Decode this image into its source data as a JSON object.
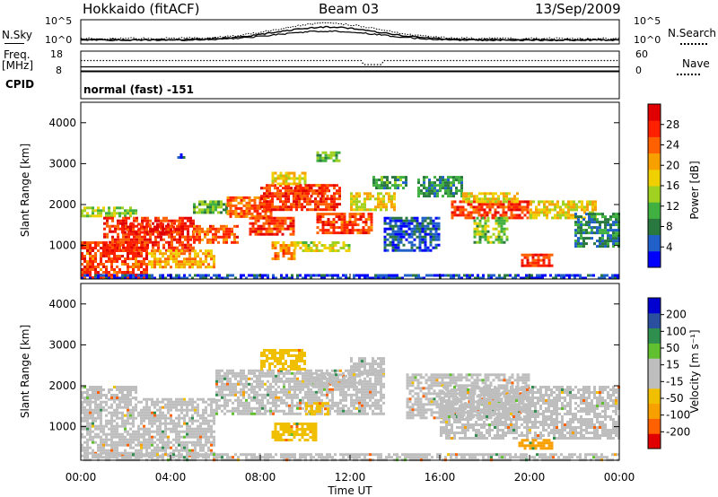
{
  "header": {
    "station": "Hokkaido (fitACF)",
    "beam": "Beam 03",
    "date": "13/Sep/2009"
  },
  "top_panels": {
    "nsky_label": "N.Sky",
    "nsky_ticks": [
      "10^5",
      "10^0"
    ],
    "nsearch_label": "N.Search",
    "nsearch_ticks": [
      "10^5",
      "10^0"
    ],
    "freq_label_1": "Freq.",
    "freq_label_2": "[MHz]",
    "freq_ticks": [
      "18",
      "8"
    ],
    "nave_label": "Nave",
    "nave_ticks": [
      "60",
      "0"
    ],
    "cpid_label": "CPID",
    "cpid_text": "normal (fast) -151"
  },
  "axes": {
    "ylabel": "Slant Range [km]",
    "xlabel": "Time UT",
    "yticks": [
      "1000",
      "2000",
      "3000",
      "4000"
    ],
    "xticks": [
      "00:00",
      "04:00",
      "08:00",
      "12:00",
      "16:00",
      "20:00",
      "00:00"
    ]
  },
  "colors": {
    "power": [
      "#0000ff",
      "#2060c8",
      "#287840",
      "#40b040",
      "#a0d020",
      "#f0d000",
      "#f8a000",
      "#ff6000",
      "#ff2000",
      "#e00000"
    ],
    "velocity": [
      "#e00000",
      "#ff6000",
      "#f8a000",
      "#f0c000",
      "#bebebe",
      "#bebebe",
      "#60c030",
      "#2f8f4f",
      "#2a4f9f",
      "#0000d0"
    ],
    "gray": "#bebebe"
  },
  "chart_data": [
    {
      "type": "heatmap",
      "panel": "power",
      "colorbar_label": "Power [dB]",
      "colorbar_ticks": [
        "4",
        "8",
        "12",
        "16",
        "20",
        "24",
        "28"
      ],
      "x_range_hours": [
        0,
        24
      ],
      "y_range_km": [
        180,
        4500
      ],
      "bands": [
        {
          "t": [
            0.0,
            3.0
          ],
          "r": [
            180,
            1100
          ],
          "v": 26
        },
        {
          "t": [
            0.0,
            2.5
          ],
          "r": [
            1700,
            1950
          ],
          "v": 14
        },
        {
          "t": [
            1.0,
            5.0
          ],
          "r": [
            900,
            1700
          ],
          "v": 27
        },
        {
          "t": [
            1.8,
            4.5
          ],
          "r": [
            1300,
            1550
          ],
          "v": 28
        },
        {
          "t": [
            3.0,
            6.0
          ],
          "r": [
            500,
            900
          ],
          "v": 20
        },
        {
          "t": [
            5.0,
            7.0
          ],
          "r": [
            1100,
            1500
          ],
          "v": 25
        },
        {
          "t": [
            5.0,
            6.5
          ],
          "r": [
            1800,
            2100
          ],
          "v": 12
        },
        {
          "t": [
            6.5,
            8.5
          ],
          "r": [
            1700,
            2200
          ],
          "v": 24
        },
        {
          "t": [
            7.5,
            9.5
          ],
          "r": [
            1300,
            1700
          ],
          "v": 26
        },
        {
          "t": [
            8.0,
            11.5
          ],
          "r": [
            1900,
            2500
          ],
          "v": 27
        },
        {
          "t": [
            8.5,
            10.0
          ],
          "r": [
            2500,
            2800
          ],
          "v": 18
        },
        {
          "t": [
            9.5,
            11.0
          ],
          "r": [
            2200,
            2500
          ],
          "v": 26
        },
        {
          "t": [
            10.5,
            13.0
          ],
          "r": [
            1300,
            1800
          ],
          "v": 26
        },
        {
          "t": [
            12.0,
            14.0
          ],
          "r": [
            1900,
            2300
          ],
          "v": 18
        },
        {
          "t": [
            13.0,
            14.5
          ],
          "r": [
            2400,
            2700
          ],
          "v": 10
        },
        {
          "t": [
            8.5,
            9.5
          ],
          "r": [
            700,
            1100
          ],
          "v": 22
        },
        {
          "t": [
            9.5,
            12.0
          ],
          "r": [
            900,
            1100
          ],
          "v": 16
        },
        {
          "t": [
            15.0,
            17.0
          ],
          "r": [
            2200,
            2700
          ],
          "v": 9
        },
        {
          "t": [
            16.5,
            20.0
          ],
          "r": [
            1700,
            2100
          ],
          "v": 26
        },
        {
          "t": [
            17.0,
            19.5
          ],
          "r": [
            2100,
            2300
          ],
          "v": 18
        },
        {
          "t": [
            20.0,
            23.0
          ],
          "r": [
            1700,
            2100
          ],
          "v": 18
        },
        {
          "t": [
            22.0,
            24.0
          ],
          "r": [
            1000,
            1800
          ],
          "v": 8
        },
        {
          "t": [
            19.5,
            21.0
          ],
          "r": [
            500,
            800
          ],
          "v": 26
        },
        {
          "t": [
            17.5,
            19.0
          ],
          "r": [
            1100,
            1700
          ],
          "v": 13
        },
        {
          "t": [
            13.5,
            16.0
          ],
          "r": [
            900,
            1700
          ],
          "v": 5
        },
        {
          "t": [
            0.0,
            24.0
          ],
          "r": [
            180,
            300
          ],
          "v": 4
        },
        {
          "t": [
            10.5,
            11.5
          ],
          "r": [
            3100,
            3300
          ],
          "v": 12
        },
        {
          "t": [
            4.3,
            4.6
          ],
          "r": [
            3150,
            3250
          ],
          "v": 4
        }
      ]
    },
    {
      "type": "heatmap",
      "panel": "velocity",
      "colorbar_label": "Velocity [m s⁻¹]",
      "colorbar_ticks": [
        "-200",
        "-100",
        "-50",
        "-15",
        "15",
        "50",
        "100",
        "200"
      ],
      "x_range_hours": [
        0,
        24
      ],
      "y_range_km": [
        180,
        4500
      ],
      "bands": [
        {
          "t": [
            0.0,
            6.0
          ],
          "r": [
            300,
            1700
          ],
          "v": 0
        },
        {
          "t": [
            0.0,
            2.5
          ],
          "r": [
            1700,
            2000
          ],
          "v": 0
        },
        {
          "t": [
            6.0,
            13.5
          ],
          "r": [
            1300,
            2400
          ],
          "v": 0
        },
        {
          "t": [
            8.0,
            10.0
          ],
          "r": [
            2400,
            2900
          ],
          "v": -30
        },
        {
          "t": [
            10.0,
            12.5
          ],
          "r": [
            2000,
            2300
          ],
          "v": 30
        },
        {
          "t": [
            12.0,
            13.5
          ],
          "r": [
            2300,
            2700
          ],
          "v": 0
        },
        {
          "t": [
            14.5,
            20.0
          ],
          "r": [
            1200,
            2300
          ],
          "v": 0
        },
        {
          "t": [
            16.0,
            24.0
          ],
          "r": [
            700,
            2000
          ],
          "v": 0
        },
        {
          "t": [
            8.5,
            10.5
          ],
          "r": [
            700,
            1100
          ],
          "v": -30
        },
        {
          "t": [
            19.5,
            21.0
          ],
          "r": [
            450,
            700
          ],
          "v": -80
        },
        {
          "t": [
            10.0,
            11.0
          ],
          "r": [
            1300,
            1600
          ],
          "v": -30
        },
        {
          "t": [
            0.0,
            24.0
          ],
          "r": [
            180,
            350
          ],
          "v": 0
        }
      ]
    }
  ]
}
